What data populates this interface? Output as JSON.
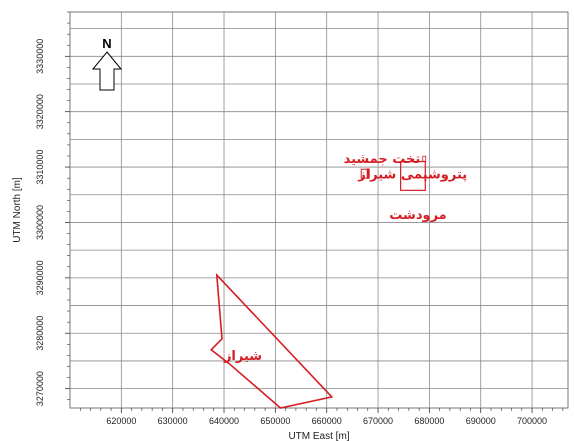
{
  "map": {
    "x_axis": {
      "label": "UTM East [m]",
      "min": 610000,
      "max": 707000,
      "ticks": [
        620000,
        630000,
        640000,
        650000,
        660000,
        670000,
        680000,
        690000,
        700000
      ]
    },
    "y_axis": {
      "label": "UTM North [m]",
      "min": 3266500,
      "max": 3338000,
      "ticks": [
        3270000,
        3280000,
        3290000,
        3300000,
        3310000,
        3320000,
        3330000
      ]
    },
    "north_arrow": {
      "letter": "N"
    },
    "accent_color": "#d41e23",
    "grid": true,
    "features": {
      "takht_jamshid": {
        "label": "تخت جمشید",
        "x": 679000,
        "y": 3311500
      },
      "petrochemical": {
        "label": "پتروشیمی شیراز",
        "x": 667500,
        "y": 3308800
      },
      "marvdasht": {
        "label": "مرودشت",
        "x0": 674400,
        "x1": 679200,
        "y0": 3305800,
        "y1": 3311000
      },
      "shiraz": {
        "label": "شیراز",
        "polygon": [
          [
            638600,
            3290500
          ],
          [
            661000,
            3268500
          ],
          [
            651000,
            3266500
          ],
          [
            641000,
            3274500
          ],
          [
            637500,
            3277000
          ],
          [
            639600,
            3279000
          ]
        ]
      }
    }
  }
}
